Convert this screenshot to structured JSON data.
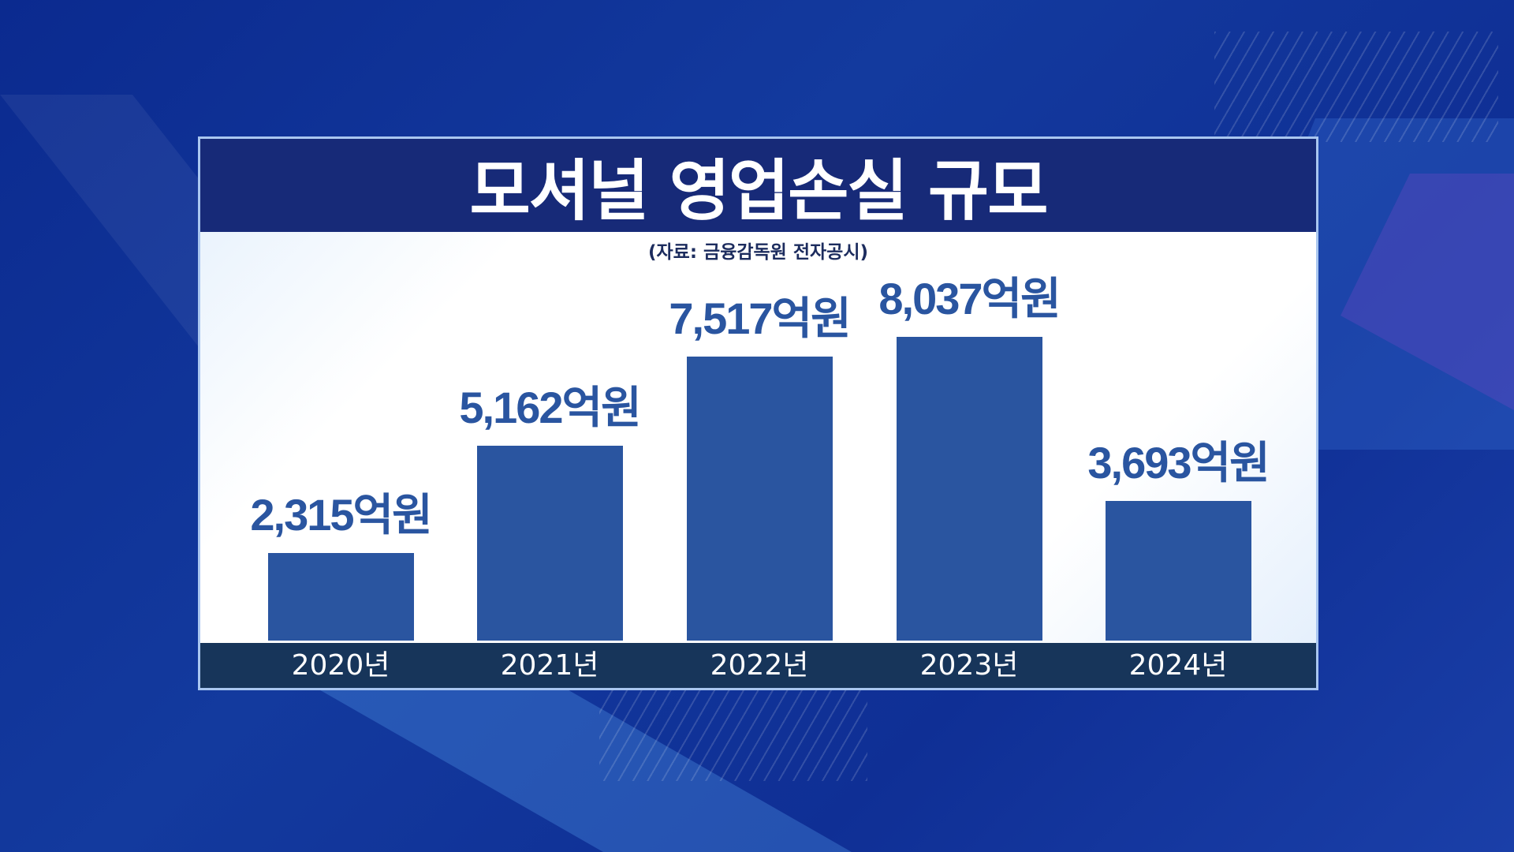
{
  "chart_data": {
    "type": "bar",
    "title": "모셔널 영업손실 규모",
    "subtitle": "(자료: 금융감독원 전자공시)",
    "categories": [
      "2020년",
      "2021년",
      "2022년",
      "2023년",
      "2024년"
    ],
    "values": [
      2315,
      5162,
      7517,
      8037,
      3693
    ],
    "data_labels": [
      "2,315억원",
      "5,162억원",
      "7,517억원",
      "8,037억원",
      "3,693억원"
    ],
    "unit": "억원",
    "grid": false,
    "legend": "none",
    "colors": {
      "bar": "#2a55a0",
      "title_bar": "#172a78",
      "axis_bar": "#17355a",
      "label": "#2a55a0"
    }
  }
}
